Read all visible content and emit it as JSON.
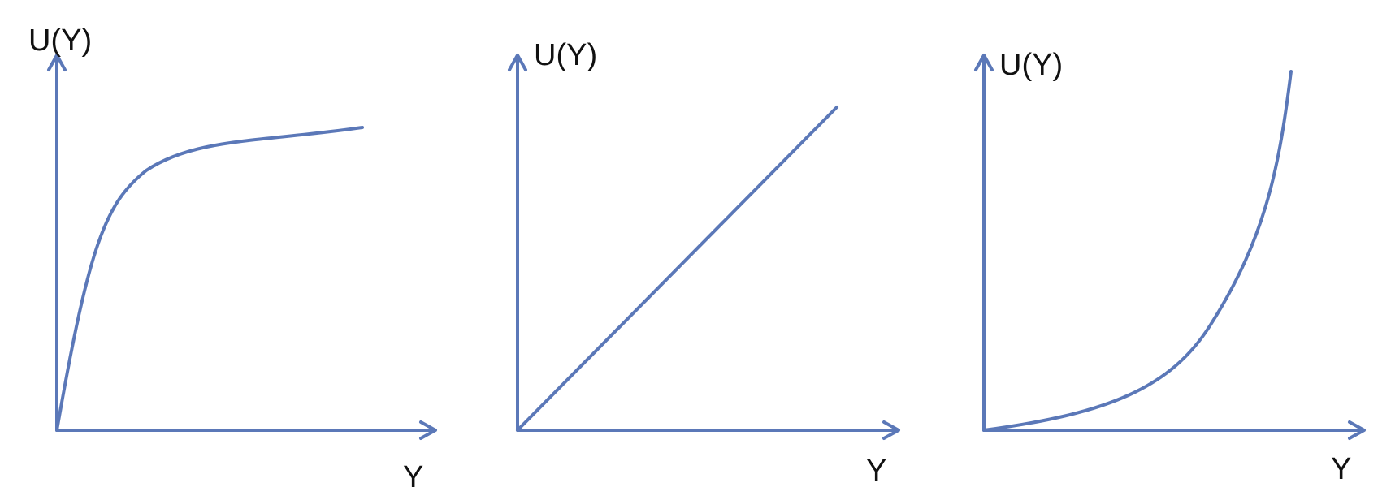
{
  "diagram": {
    "line_color": "#5b78b8",
    "text_color": "#111111",
    "panels": [
      {
        "id": "concave",
        "y_axis_label": "U(Y)",
        "x_axis_label": "Y",
        "curve_shape": "concave"
      },
      {
        "id": "linear",
        "y_axis_label": "U(Y)",
        "x_axis_label": "Y",
        "curve_shape": "linear"
      },
      {
        "id": "convex",
        "y_axis_label": "U(Y)",
        "x_axis_label": "Y",
        "curve_shape": "convex"
      }
    ]
  }
}
